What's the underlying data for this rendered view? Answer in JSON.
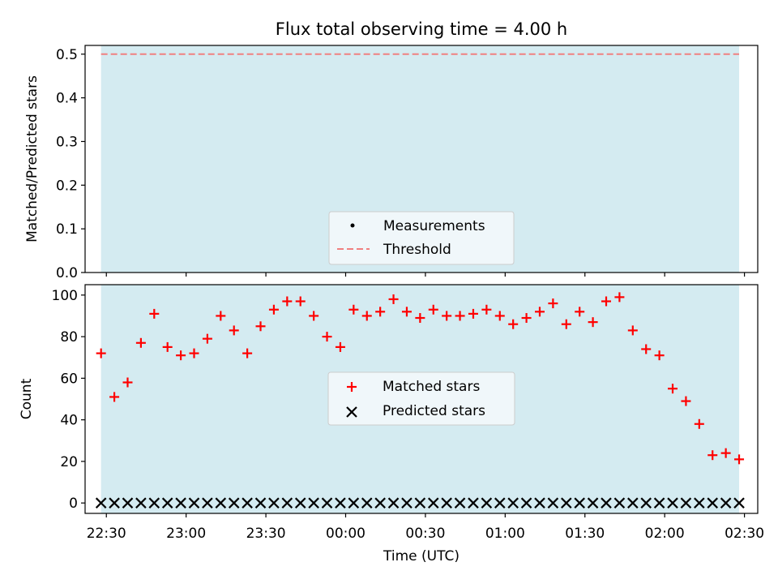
{
  "chart_data": [
    {
      "type": "line",
      "title": "Flux total observing time = 4.00 h",
      "xlabel": "",
      "ylabel": "Matched/Predicted stars",
      "ylim": [
        0,
        0.52
      ],
      "yticks": [
        0.0,
        0.1,
        0.2,
        0.3,
        0.4,
        0.5
      ],
      "ytick_labels": [
        "0.0",
        "0.1",
        "0.2",
        "0.3",
        "0.4",
        "0.5"
      ],
      "shaded_span": {
        "start": "22:28",
        "end": "02:28",
        "color": "#d4ebf1"
      },
      "threshold": {
        "value": 0.5,
        "color": "#f08080"
      },
      "series": [
        {
          "name": "Measurements",
          "values": []
        },
        {
          "name": "Threshold",
          "values": [
            0.5
          ]
        }
      ],
      "legend": "lower-center"
    },
    {
      "type": "scatter",
      "xlabel": "Time (UTC)",
      "ylabel": "Count",
      "ylim": [
        -5,
        105
      ],
      "yticks": [
        0,
        20,
        40,
        60,
        80,
        100
      ],
      "ytick_labels": [
        "0",
        "20",
        "40",
        "60",
        "80",
        "100"
      ],
      "xticks": [
        "22:30",
        "23:00",
        "23:30",
        "00:00",
        "00:30",
        "01:00",
        "01:30",
        "02:00",
        "02:30"
      ],
      "x": [
        "22:28",
        "22:33",
        "22:38",
        "22:43",
        "22:48",
        "22:53",
        "22:58",
        "23:03",
        "23:08",
        "23:13",
        "23:18",
        "23:23",
        "23:28",
        "23:33",
        "23:38",
        "23:43",
        "23:48",
        "23:53",
        "23:58",
        "00:03",
        "00:08",
        "00:13",
        "00:18",
        "00:23",
        "00:28",
        "00:33",
        "00:38",
        "00:43",
        "00:48",
        "00:53",
        "00:58",
        "01:03",
        "01:08",
        "01:13",
        "01:18",
        "01:23",
        "01:28",
        "01:33",
        "01:38",
        "01:43",
        "01:48",
        "01:53",
        "01:58",
        "02:03",
        "02:08",
        "02:13",
        "02:18",
        "02:23",
        "02:28"
      ],
      "series": [
        {
          "name": "Matched stars",
          "color": "#ff0000",
          "marker": "+",
          "values": [
            72,
            51,
            58,
            77,
            91,
            75,
            71,
            72,
            79,
            90,
            83,
            72,
            85,
            93,
            97,
            97,
            90,
            80,
            75,
            93,
            90,
            92,
            98,
            92,
            89,
            93,
            90,
            90,
            91,
            93,
            90,
            86,
            89,
            92,
            96,
            86,
            92,
            87,
            97,
            99,
            83,
            74,
            71,
            55,
            49,
            38,
            23,
            24,
            21
          ]
        },
        {
          "name": "Predicted stars",
          "color": "#000000",
          "marker": "x",
          "values": [
            0,
            0,
            0,
            0,
            0,
            0,
            0,
            0,
            0,
            0,
            0,
            0,
            0,
            0,
            0,
            0,
            0,
            0,
            0,
            0,
            0,
            0,
            0,
            0,
            0,
            0,
            0,
            0,
            0,
            0,
            0,
            0,
            0,
            0,
            0,
            0,
            0,
            0,
            0,
            0,
            0,
            0,
            0,
            0,
            0,
            0,
            0,
            0,
            0
          ]
        }
      ],
      "shaded_span": {
        "start": "22:28",
        "end": "02:28",
        "color": "#d4ebf1"
      },
      "legend": "center"
    }
  ]
}
